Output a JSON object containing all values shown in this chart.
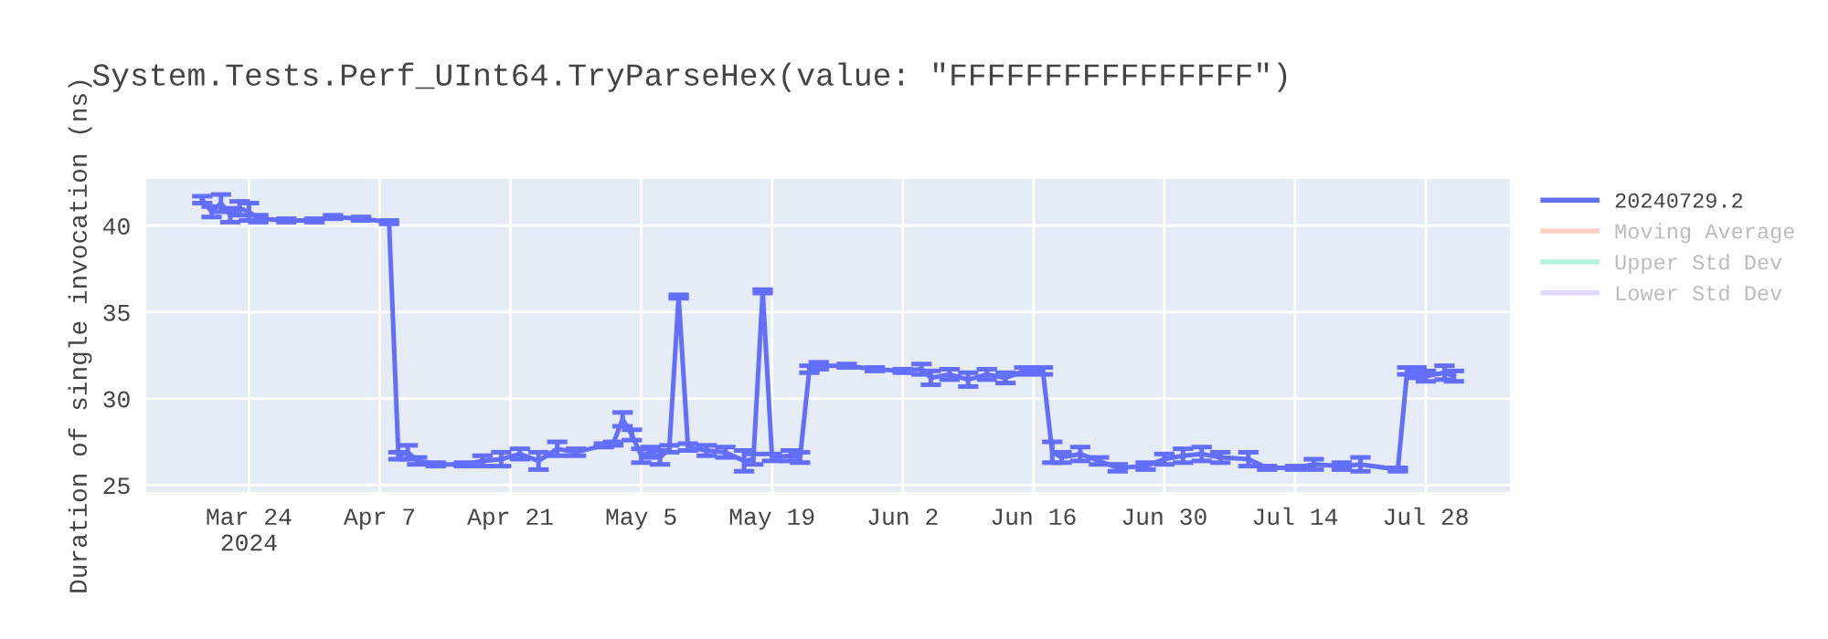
{
  "chart_data": {
    "type": "line",
    "title": "System.Tests.Perf_UInt64.TryParseHex(value: \"FFFFFFFFFFFFFFFF\")",
    "ylabel": "Duration of single invocation (ns)",
    "x": [
      "2024-03-19",
      "2024-03-20",
      "2024-03-21",
      "2024-03-22",
      "2024-03-23",
      "2024-03-24",
      "2024-03-25",
      "2024-03-28",
      "2024-03-31",
      "2024-04-02",
      "2024-04-05",
      "2024-04-08",
      "2024-04-09",
      "2024-04-10",
      "2024-04-11",
      "2024-04-13",
      "2024-04-16",
      "2024-04-18",
      "2024-04-20",
      "2024-04-22",
      "2024-04-24",
      "2024-04-26",
      "2024-04-28",
      "2024-05-01",
      "2024-05-02",
      "2024-05-03",
      "2024-05-04",
      "2024-05-05",
      "2024-05-06",
      "2024-05-07",
      "2024-05-08",
      "2024-05-09",
      "2024-05-10",
      "2024-05-12",
      "2024-05-14",
      "2024-05-16",
      "2024-05-17",
      "2024-05-18",
      "2024-05-19",
      "2024-05-21",
      "2024-05-22",
      "2024-05-23",
      "2024-05-24",
      "2024-05-27",
      "2024-05-30",
      "2024-06-02",
      "2024-06-04",
      "2024-06-05",
      "2024-06-07",
      "2024-06-09",
      "2024-06-11",
      "2024-06-13",
      "2024-06-15",
      "2024-06-17",
      "2024-06-18",
      "2024-06-19",
      "2024-06-21",
      "2024-06-23",
      "2024-06-25",
      "2024-06-28",
      "2024-06-30",
      "2024-07-02",
      "2024-07-04",
      "2024-07-06",
      "2024-07-09",
      "2024-07-11",
      "2024-07-14",
      "2024-07-16",
      "2024-07-19",
      "2024-07-21",
      "2024-07-25",
      "2024-07-26",
      "2024-07-27",
      "2024-07-28",
      "2024-07-30",
      "2024-07-31"
    ],
    "series": [
      {
        "name": "20240729.2",
        "color": "#636efa",
        "values": [
          41.5,
          40.8,
          41.3,
          40.6,
          41.0,
          40.8,
          40.4,
          40.3,
          40.3,
          40.5,
          40.4,
          40.2,
          26.7,
          26.9,
          26.4,
          26.2,
          26.2,
          26.4,
          26.5,
          26.8,
          26.4,
          27.1,
          26.9,
          27.3,
          27.4,
          28.8,
          27.9,
          26.7,
          26.9,
          26.6,
          27.1,
          35.9,
          27.2,
          27.0,
          26.9,
          26.4,
          26.5,
          36.2,
          26.6,
          26.7,
          26.6,
          31.7,
          31.9,
          31.9,
          31.7,
          31.6,
          31.7,
          31.2,
          31.4,
          31.1,
          31.4,
          31.2,
          31.6,
          31.6,
          26.9,
          26.6,
          26.8,
          26.4,
          26.0,
          26.1,
          26.5,
          26.7,
          26.8,
          26.6,
          26.5,
          26.0,
          26.0,
          26.2,
          26.1,
          26.2,
          25.9,
          31.6,
          31.5,
          31.3,
          31.5,
          31.3
        ],
        "errors": [
          0.2,
          0.3,
          0.5,
          0.4,
          0.4,
          0.5,
          0.2,
          0.1,
          0.1,
          0.1,
          0.1,
          0.1,
          0.2,
          0.4,
          0.2,
          0.1,
          0.1,
          0.3,
          0.4,
          0.3,
          0.5,
          0.4,
          0.2,
          0.1,
          0.1,
          0.4,
          0.3,
          0.4,
          0.3,
          0.4,
          0.2,
          0.1,
          0.2,
          0.3,
          0.3,
          0.6,
          0.3,
          0.1,
          0.2,
          0.3,
          0.3,
          0.2,
          0.2,
          0.1,
          0.1,
          0.1,
          0.3,
          0.4,
          0.3,
          0.4,
          0.3,
          0.3,
          0.2,
          0.2,
          0.6,
          0.3,
          0.4,
          0.2,
          0.2,
          0.2,
          0.3,
          0.4,
          0.4,
          0.3,
          0.4,
          0.1,
          0.1,
          0.3,
          0.2,
          0.4,
          0.1,
          0.2,
          0.3,
          0.3,
          0.4,
          0.3
        ]
      },
      {
        "name": "Moving Average",
        "color": "#fba18d",
        "values": [
          null,
          null,
          null,
          null,
          null,
          null,
          null,
          null,
          null,
          null,
          null,
          null,
          null,
          null,
          null,
          null,
          null,
          null,
          null,
          null,
          null,
          null,
          null,
          null,
          null,
          null,
          null,
          null,
          null,
          null,
          null,
          null,
          null,
          null,
          null,
          null,
          null,
          null,
          null,
          null,
          null,
          null,
          null,
          null,
          null,
          null,
          null,
          null,
          null,
          null,
          null,
          null,
          null,
          null,
          null,
          null,
          null,
          null,
          null,
          null,
          null,
          null,
          null,
          null,
          null,
          null,
          null,
          null,
          null,
          null,
          null,
          null,
          null,
          null,
          null,
          null
        ]
      },
      {
        "name": "Upper Std Dev",
        "color": "#6de5be",
        "values": [
          null,
          null,
          null,
          null,
          null,
          null,
          null,
          null,
          null,
          null,
          null,
          null,
          null,
          null,
          null,
          null,
          null,
          null,
          null,
          null,
          null,
          null,
          null,
          null,
          null,
          null,
          null,
          null,
          null,
          null,
          null,
          null,
          null,
          null,
          null,
          null,
          null,
          null,
          null,
          null,
          null,
          null,
          null,
          null,
          null,
          null,
          null,
          null,
          null,
          null,
          null,
          null,
          null,
          null,
          null,
          null,
          null,
          null,
          null,
          null,
          null,
          null,
          null,
          null,
          null,
          null,
          null,
          null,
          null,
          null,
          null,
          null,
          null,
          null,
          null,
          null
        ]
      },
      {
        "name": "Lower Std Dev",
        "color": "#c4b3fc",
        "values": [
          null,
          null,
          null,
          null,
          null,
          null,
          null,
          null,
          null,
          null,
          null,
          null,
          null,
          null,
          null,
          null,
          null,
          null,
          null,
          null,
          null,
          null,
          null,
          null,
          null,
          null,
          null,
          null,
          null,
          null,
          null,
          null,
          null,
          null,
          null,
          null,
          null,
          null,
          null,
          null,
          null,
          null,
          null,
          null,
          null,
          null,
          null,
          null,
          null,
          null,
          null,
          null,
          null,
          null,
          null,
          null,
          null,
          null,
          null,
          null,
          null,
          null,
          null,
          null,
          null,
          null,
          null,
          null,
          null,
          null,
          null,
          null,
          null,
          null,
          null,
          null
        ]
      }
    ],
    "xlim": [
      "2024-03-13",
      "2024-08-06"
    ],
    "xticks": [
      {
        "value": "2024-03-24",
        "label": "Mar 24\n2024"
      },
      {
        "value": "2024-04-07",
        "label": "Apr 7"
      },
      {
        "value": "2024-04-21",
        "label": "Apr 21"
      },
      {
        "value": "2024-05-05",
        "label": "May 5"
      },
      {
        "value": "2024-05-19",
        "label": "May 19"
      },
      {
        "value": "2024-06-02",
        "label": "Jun 2"
      },
      {
        "value": "2024-06-16",
        "label": "Jun 16"
      },
      {
        "value": "2024-06-30",
        "label": "Jun 30"
      },
      {
        "value": "2024-07-14",
        "label": "Jul 14"
      },
      {
        "value": "2024-07-28",
        "label": "Jul 28"
      }
    ],
    "ylim": [
      24.6,
      42.7
    ],
    "yticks": [
      25,
      30,
      35,
      40
    ],
    "grid": true,
    "legend": "top right"
  }
}
